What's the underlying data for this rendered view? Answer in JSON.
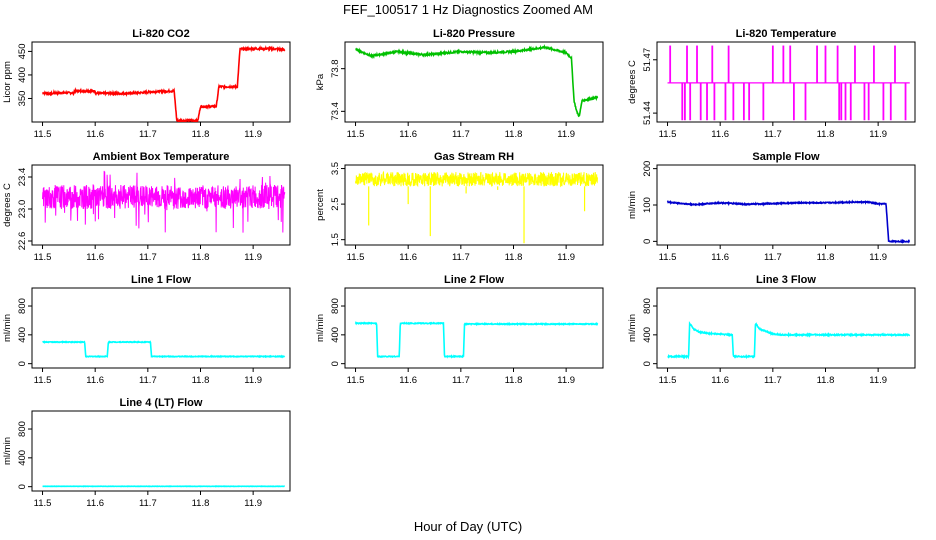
{
  "figure": {
    "title": "FEF_100517  1 Hz Diagnostics Zoomed AM",
    "xlabel": "Hour of Day (UTC)"
  },
  "chart_data": [
    {
      "id": "p1",
      "type": "line",
      "title": "Li-820 CO2",
      "ylabel": "Licor ppm",
      "color": "#ff0000",
      "xlim": [
        11.48,
        11.97
      ],
      "ylim": [
        300,
        470
      ],
      "xticks": [
        "11.5",
        "11.6",
        "11.7",
        "11.8",
        "11.9"
      ],
      "yticks": [
        "350",
        "400",
        "450"
      ],
      "x": [
        11.5,
        11.52,
        11.52,
        11.56,
        11.56,
        11.6,
        11.6,
        11.64,
        11.64,
        11.7,
        11.7,
        11.75,
        11.755,
        11.795,
        11.8,
        11.83,
        11.835,
        11.87,
        11.875,
        11.93,
        11.96
      ],
      "y": [
        362,
        360,
        362,
        362,
        366,
        366,
        361,
        361,
        360,
        363,
        364,
        366,
        303,
        303,
        333,
        333,
        375,
        375,
        455,
        456,
        454
      ],
      "noise": 2
    },
    {
      "id": "p2",
      "type": "line",
      "title": "Li-820 Pressure",
      "ylabel": "kPa",
      "color": "#00c000",
      "xlim": [
        11.48,
        11.97
      ],
      "ylim": [
        73.3,
        74.05
      ],
      "xticks": [
        "11.5",
        "11.6",
        "11.7",
        "11.8",
        "11.9"
      ],
      "yticks": [
        "73.4",
        "73.8"
      ],
      "x": [
        11.5,
        11.53,
        11.58,
        11.63,
        11.7,
        11.75,
        11.8,
        11.86,
        11.9,
        11.91,
        11.915,
        11.92,
        11.925,
        11.93,
        11.96
      ],
      "y": [
        73.98,
        73.92,
        73.96,
        73.93,
        73.96,
        73.95,
        73.96,
        74.0,
        73.95,
        73.9,
        73.5,
        73.4,
        73.35,
        73.5,
        73.53
      ],
      "noise": 0.008
    },
    {
      "id": "p3",
      "type": "spikes",
      "title": "Li-820 Temperature",
      "ylabel": "degrees C",
      "color": "#ff00ff",
      "xlim": [
        11.48,
        11.97
      ],
      "ylim": [
        51.435,
        51.48
      ],
      "xticks": [
        "11.5",
        "11.6",
        "11.7",
        "11.8",
        "11.9"
      ],
      "yticks": [
        "51.44",
        "51.47"
      ],
      "base": 51.457,
      "high": 51.478,
      "low": 51.436,
      "spikes_up": [
        11.505,
        11.537,
        11.556,
        11.585,
        11.616,
        11.7,
        11.72,
        11.733,
        11.784,
        11.8,
        11.823,
        11.856,
        11.892,
        11.932
      ],
      "spikes_down": [
        11.528,
        11.533,
        11.543,
        11.563,
        11.575,
        11.589,
        11.61,
        11.625,
        11.645,
        11.655,
        11.682,
        11.74,
        11.762,
        11.826,
        11.83,
        11.838,
        11.848,
        11.874,
        11.882,
        11.91,
        11.924,
        11.952
      ]
    },
    {
      "id": "p4",
      "type": "noise",
      "title": "Ambient Box Temperature",
      "ylabel": "degrees C",
      "color": "#ff00ff",
      "xlim": [
        11.48,
        11.97
      ],
      "ylim": [
        22.55,
        23.55
      ],
      "xticks": [
        "11.5",
        "11.6",
        "11.7",
        "11.8",
        "11.9"
      ],
      "yticks": [
        "22.6",
        "23.0",
        "23.4"
      ],
      "x": [
        11.5,
        11.96
      ],
      "y": [
        23.15,
        23.15
      ],
      "band": [
        23.0,
        23.3
      ],
      "spread": [
        22.7,
        23.5
      ]
    },
    {
      "id": "p5",
      "type": "noise",
      "title": "Gas Stream RH",
      "ylabel": "percent",
      "color": "#ffff00",
      "xlim": [
        11.48,
        11.97
      ],
      "ylim": [
        1.35,
        3.6
      ],
      "xticks": [
        "11.5",
        "11.6",
        "11.7",
        "11.8",
        "11.9"
      ],
      "yticks": [
        "1.5",
        "2.5",
        "3.5"
      ],
      "x": [
        11.5,
        11.96
      ],
      "y": [
        3.2,
        3.2
      ],
      "band": [
        3.0,
        3.4
      ],
      "dips": [
        [
          11.525,
          1.9
        ],
        [
          11.6,
          2.5
        ],
        [
          11.642,
          1.6
        ],
        [
          11.82,
          1.4
        ],
        [
          11.935,
          2.3
        ],
        [
          11.71,
          2.8
        ],
        [
          11.77,
          2.9
        ]
      ]
    },
    {
      "id": "p6",
      "type": "line",
      "title": "Sample Flow",
      "ylabel": "ml/min",
      "color": "#0000cc",
      "xlim": [
        11.48,
        11.97
      ],
      "ylim": [
        -10,
        210
      ],
      "xticks": [
        "11.5",
        "11.6",
        "11.7",
        "11.8",
        "11.9"
      ],
      "yticks": [
        "0",
        "100",
        "200"
      ],
      "x": [
        11.5,
        11.55,
        11.6,
        11.65,
        11.7,
        11.75,
        11.8,
        11.85,
        11.88,
        11.9,
        11.915,
        11.92,
        11.96
      ],
      "y": [
        108,
        101,
        106,
        102,
        104,
        106,
        106,
        108,
        108,
        103,
        103,
        0,
        0
      ],
      "noise": 1.5
    },
    {
      "id": "p7",
      "type": "line",
      "title": "Line 1 Flow",
      "ylabel": "ml/min",
      "color": "#00ffff",
      "xlim": [
        11.48,
        11.97
      ],
      "ylim": [
        -60,
        1050
      ],
      "xticks": [
        "11.5",
        "11.6",
        "11.7",
        "11.8",
        "11.9"
      ],
      "yticks": [
        "0",
        "400",
        "800"
      ],
      "x": [
        11.5,
        11.58,
        11.582,
        11.623,
        11.625,
        11.705,
        11.707,
        11.96
      ],
      "y": [
        300,
        300,
        100,
        100,
        300,
        300,
        100,
        100
      ],
      "noise": 5
    },
    {
      "id": "p8",
      "type": "line",
      "title": "Line 2 Flow",
      "ylabel": "ml/min",
      "color": "#00ffff",
      "xlim": [
        11.48,
        11.97
      ],
      "ylim": [
        -60,
        1050
      ],
      "xticks": [
        "11.5",
        "11.6",
        "11.7",
        "11.8",
        "11.9"
      ],
      "yticks": [
        "0",
        "400",
        "800"
      ],
      "x": [
        11.5,
        11.54,
        11.542,
        11.583,
        11.585,
        11.667,
        11.669,
        11.705,
        11.707,
        11.96
      ],
      "y": [
        560,
        560,
        100,
        100,
        560,
        560,
        100,
        100,
        550,
        550
      ],
      "noise": 6
    },
    {
      "id": "p9",
      "type": "line",
      "title": "Line 3 Flow",
      "ylabel": "ml/min",
      "color": "#00ffff",
      "xlim": [
        11.48,
        11.97
      ],
      "ylim": [
        -60,
        1050
      ],
      "xticks": [
        "11.5",
        "11.6",
        "11.7",
        "11.8",
        "11.9"
      ],
      "yticks": [
        "0",
        "400",
        "800"
      ],
      "x": [
        11.5,
        11.54,
        11.542,
        11.55,
        11.56,
        11.58,
        11.623,
        11.625,
        11.665,
        11.667,
        11.675,
        11.69,
        11.7,
        11.72,
        11.96
      ],
      "y": [
        100,
        100,
        560,
        480,
        440,
        420,
        400,
        100,
        100,
        560,
        480,
        440,
        410,
        400,
        400
      ],
      "noise": 8
    },
    {
      "id": "p10",
      "type": "line",
      "title": "Line 4 (LT) Flow",
      "ylabel": "ml/min",
      "color": "#00ffff",
      "xlim": [
        11.48,
        11.97
      ],
      "ylim": [
        -60,
        1050
      ],
      "xticks": [
        "11.5",
        "11.6",
        "11.7",
        "11.8",
        "11.9"
      ],
      "yticks": [
        "0",
        "400",
        "800"
      ],
      "x": [
        11.5,
        11.96
      ],
      "y": [
        5,
        5
      ],
      "noise": 2
    }
  ]
}
